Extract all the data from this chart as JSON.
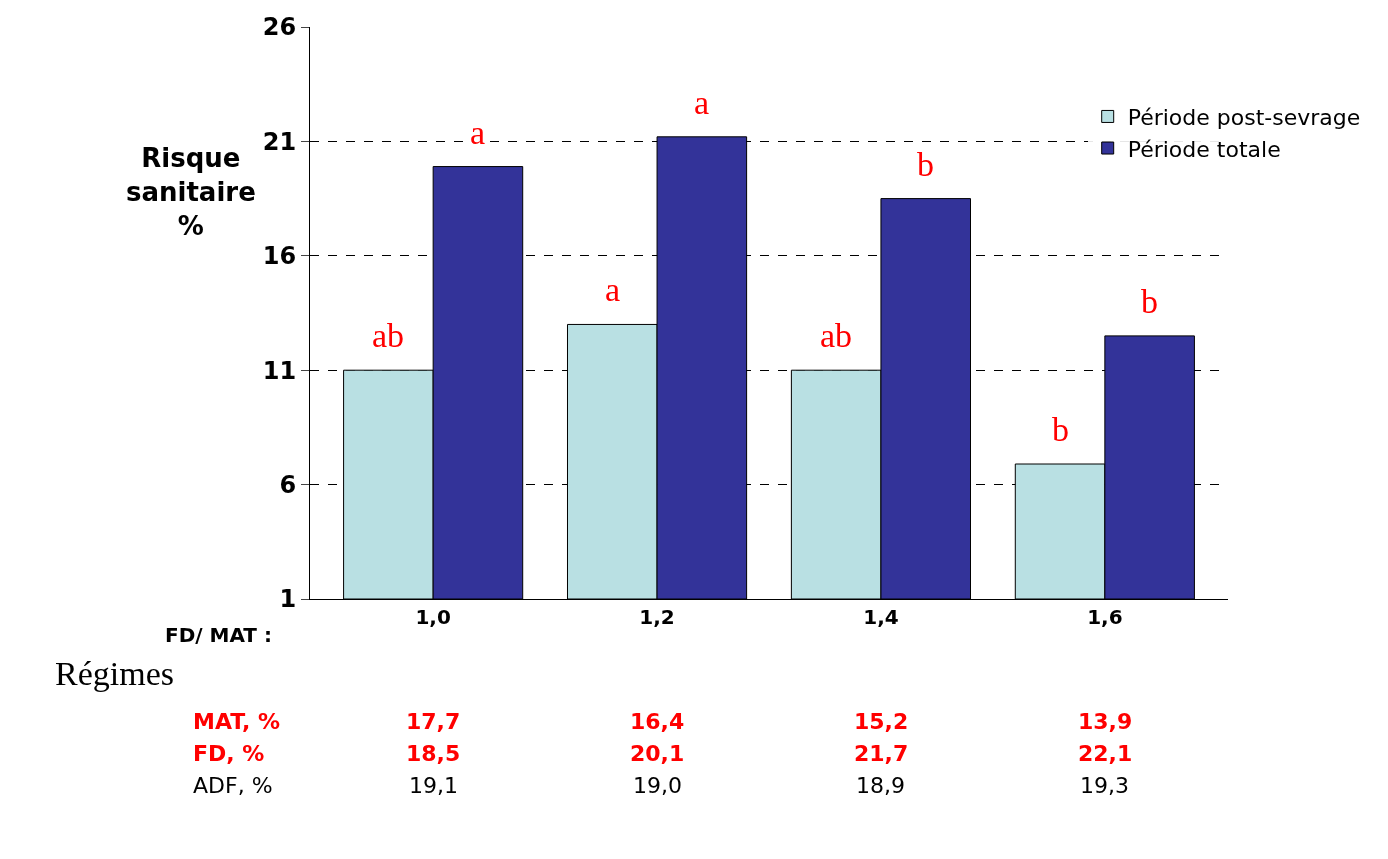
{
  "chart_data": {
    "type": "bar",
    "ylabel": "Risque sanitaire %",
    "xlabel": "FD/ MAT :",
    "categories": [
      "1,0",
      "1,2",
      "1,4",
      "1,6"
    ],
    "series": [
      {
        "name": "Période post-sevrage",
        "color": "#b9e0e3",
        "values": [
          11,
          13,
          11,
          6.9
        ]
      },
      {
        "name": "Période totale",
        "color": "#333399",
        "values": [
          19.9,
          21.2,
          18.5,
          12.5
        ]
      }
    ],
    "ylim": [
      1,
      26
    ],
    "yticks": [
      1,
      6,
      11,
      16,
      21,
      26
    ],
    "grid": "y",
    "legend": "top right",
    "annotations": [
      {
        "text": "ab",
        "x": "1,0",
        "y": 11
      },
      {
        "text": "a",
        "x": "1,0",
        "y": 19.9
      },
      {
        "text": "a",
        "x": "1,2",
        "y": 13
      },
      {
        "text": "a",
        "x": "1,2",
        "y": 21.2
      },
      {
        "text": "ab",
        "x": "1,4",
        "y": 11
      },
      {
        "text": "b",
        "x": "1,4",
        "y": 18.5
      },
      {
        "text": "b",
        "x": "1,6",
        "y": 6.9
      },
      {
        "text": "b",
        "x": "1,6",
        "y": 12.5
      },
      "Régimes",
      "MAT, %",
      "17,7",
      "16,4",
      "15,2",
      "13,9",
      "FD, %",
      "18,5",
      "20,1",
      "21,7",
      "22,1",
      "ADF, %",
      "19,1",
      "19,0",
      "18,9",
      "19,3"
    ]
  }
}
